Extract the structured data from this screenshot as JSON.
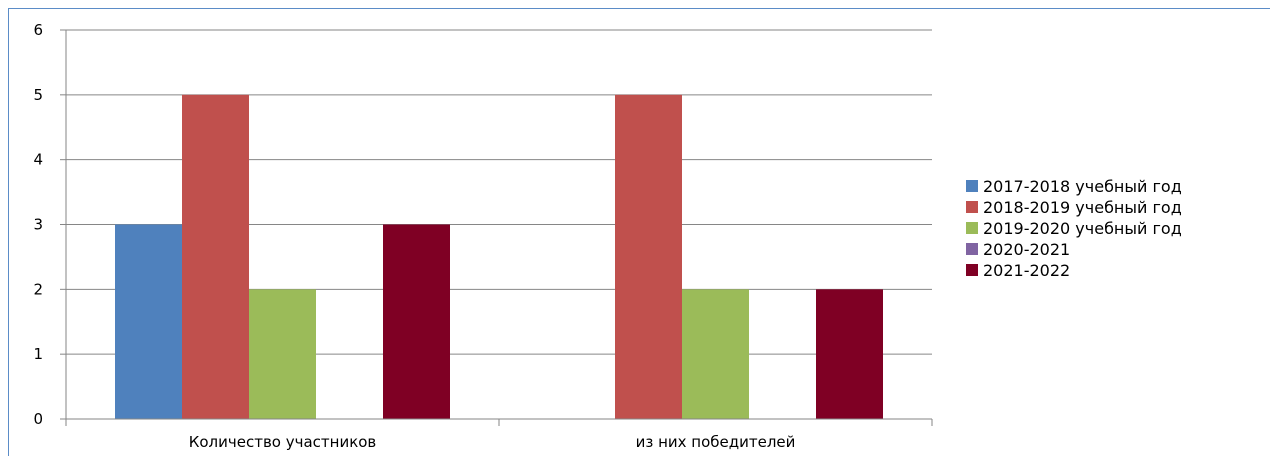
{
  "chart_data": {
    "type": "bar",
    "categories": [
      "Количество участников",
      "из них победителей"
    ],
    "series": [
      {
        "name": "2017-2018 учебный год",
        "color": "#4f81bd",
        "values": [
          3,
          0
        ]
      },
      {
        "name": "2018-2019 учебный год",
        "color": "#c0504d",
        "values": [
          5,
          5
        ]
      },
      {
        "name": "2019-2020 учебный год",
        "color": "#9bbb59",
        "values": [
          2,
          2
        ]
      },
      {
        "name": "2020-2021",
        "color": "#8064a2",
        "values": [
          0,
          0
        ]
      },
      {
        "name": "2021-2022",
        "color": "#7f0024",
        "values": [
          3,
          2
        ]
      }
    ],
    "ylim": [
      0,
      6
    ],
    "yticks": [
      0,
      1,
      2,
      3,
      4,
      5,
      6
    ],
    "grid": true,
    "legend_position": "right"
  }
}
